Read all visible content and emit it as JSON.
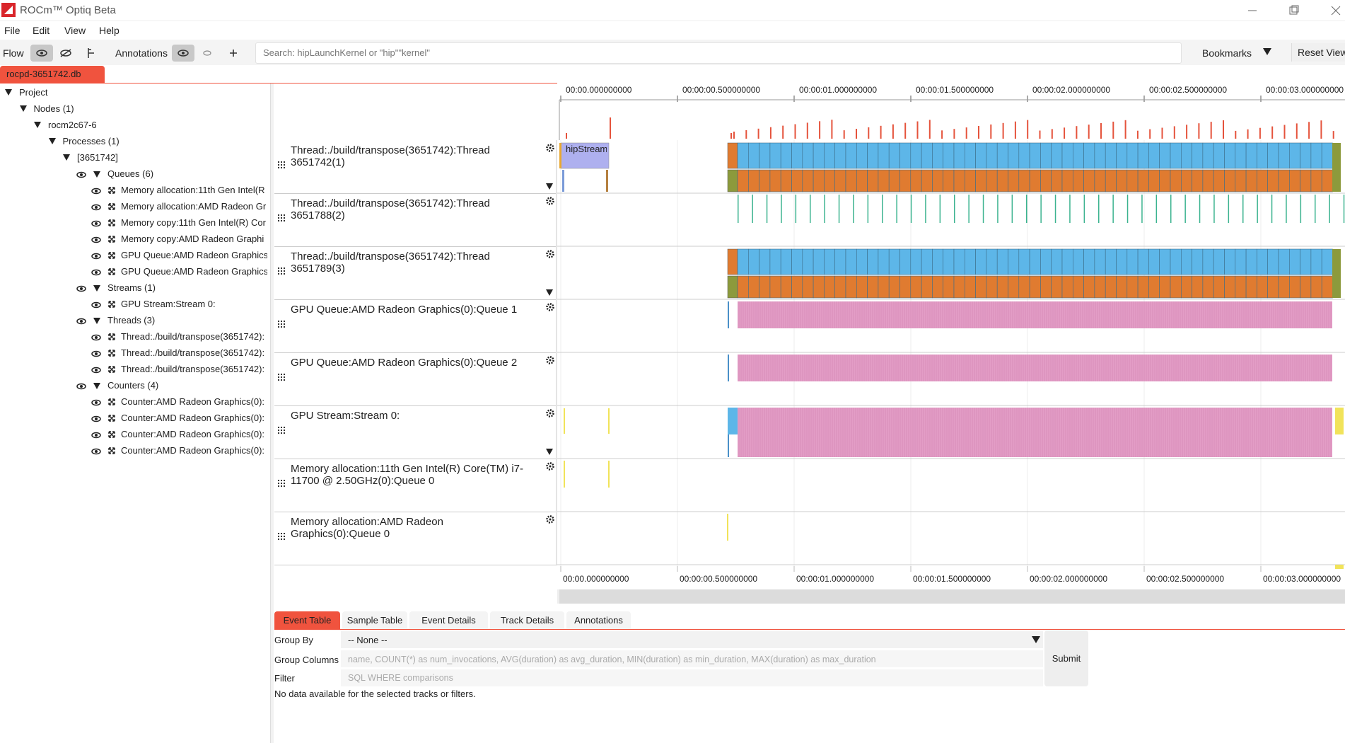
{
  "window": {
    "title": "ROCm™ Optiq Beta"
  },
  "menu": [
    "File",
    "Edit",
    "View",
    "Help"
  ],
  "toolbar": {
    "flow": "Flow",
    "annotations": "Annotations",
    "search_placeholder": "Search: hipLaunchKernel or \"hip\"\"kernel\"",
    "bookmarks": "Bookmarks",
    "reset_view": "Reset View"
  },
  "file_tab": "rocpd-3651742.db",
  "tree": {
    "label": "Project",
    "children": [
      {
        "label": "Nodes (1)",
        "children": [
          {
            "label": "rocm2c67-6",
            "children": [
              {
                "label": "Processes (1)",
                "children": [
                  {
                    "label": "[3651742]",
                    "children": [
                      {
                        "label": "Queues (6)",
                        "children": [
                          {
                            "label": "Memory allocation:11th Gen Intel(R"
                          },
                          {
                            "label": "Memory allocation:AMD Radeon Gr"
                          },
                          {
                            "label": "Memory copy:11th Gen Intel(R) Cor"
                          },
                          {
                            "label": "Memory copy:AMD Radeon Graphi"
                          },
                          {
                            "label": "GPU Queue:AMD Radeon Graphics"
                          },
                          {
                            "label": "GPU Queue:AMD Radeon Graphics"
                          }
                        ]
                      },
                      {
                        "label": "Streams (1)",
                        "children": [
                          {
                            "label": "GPU Stream:Stream 0:"
                          }
                        ]
                      },
                      {
                        "label": "Threads (3)",
                        "children": [
                          {
                            "label": "Thread:./build/transpose(3651742):"
                          },
                          {
                            "label": "Thread:./build/transpose(3651742):"
                          },
                          {
                            "label": "Thread:./build/transpose(3651742):"
                          }
                        ]
                      },
                      {
                        "label": "Counters (4)",
                        "children": [
                          {
                            "label": "Counter:AMD Radeon Graphics(0):"
                          },
                          {
                            "label": "Counter:AMD Radeon Graphics(0):"
                          },
                          {
                            "label": "Counter:AMD Radeon Graphics(0):"
                          },
                          {
                            "label": "Counter:AMD Radeon Graphics(0):"
                          }
                        ]
                      }
                    ]
                  }
                ]
              }
            ]
          }
        ]
      }
    ]
  },
  "timeline": {
    "ticks": [
      "00:00.000000000",
      "00:00:00.500000000",
      "00:00:01.000000000",
      "00:00:01.500000000",
      "00:00:02.000000000",
      "00:00:02.500000000",
      "00:00:03.000000000"
    ],
    "event_label": "hipStream",
    "tracks": [
      {
        "name": "Thread:./build/transpose(3651742):Thread 3651742(1)"
      },
      {
        "name": "Thread:./build/transpose(3651742):Thread 3651788(2)"
      },
      {
        "name": "Thread:./build/transpose(3651742):Thread 3651789(3)"
      },
      {
        "name": "GPU Queue:AMD Radeon Graphics(0):Queue 1"
      },
      {
        "name": "GPU Queue:AMD Radeon Graphics(0):Queue 2"
      },
      {
        "name": "GPU Stream:Stream 0:"
      },
      {
        "name": "Memory allocation:11th Gen Intel(R) Core(TM) i7-11700 @ 2.50GHz(0):Queue 0"
      },
      {
        "name": "Memory allocation:AMD Radeon Graphics(0):Queue 0"
      }
    ]
  },
  "bottom_tabs": [
    "Event Table",
    "Sample Table",
    "Event Details",
    "Track Details",
    "Annotations"
  ],
  "query": {
    "group_by_label": "Group By",
    "group_by_value": "-- None --",
    "group_columns_label": "Group Columns",
    "group_columns_placeholder": "name, COUNT(*) as num_invocations, AVG(duration) as avg_duration, MIN(duration) as min_duration, MAX(duration) as max_duration",
    "filter_label": "Filter",
    "filter_placeholder": "SQL WHERE comparisons",
    "submit": "Submit",
    "message": "No data available for the selected tracks or filters."
  }
}
